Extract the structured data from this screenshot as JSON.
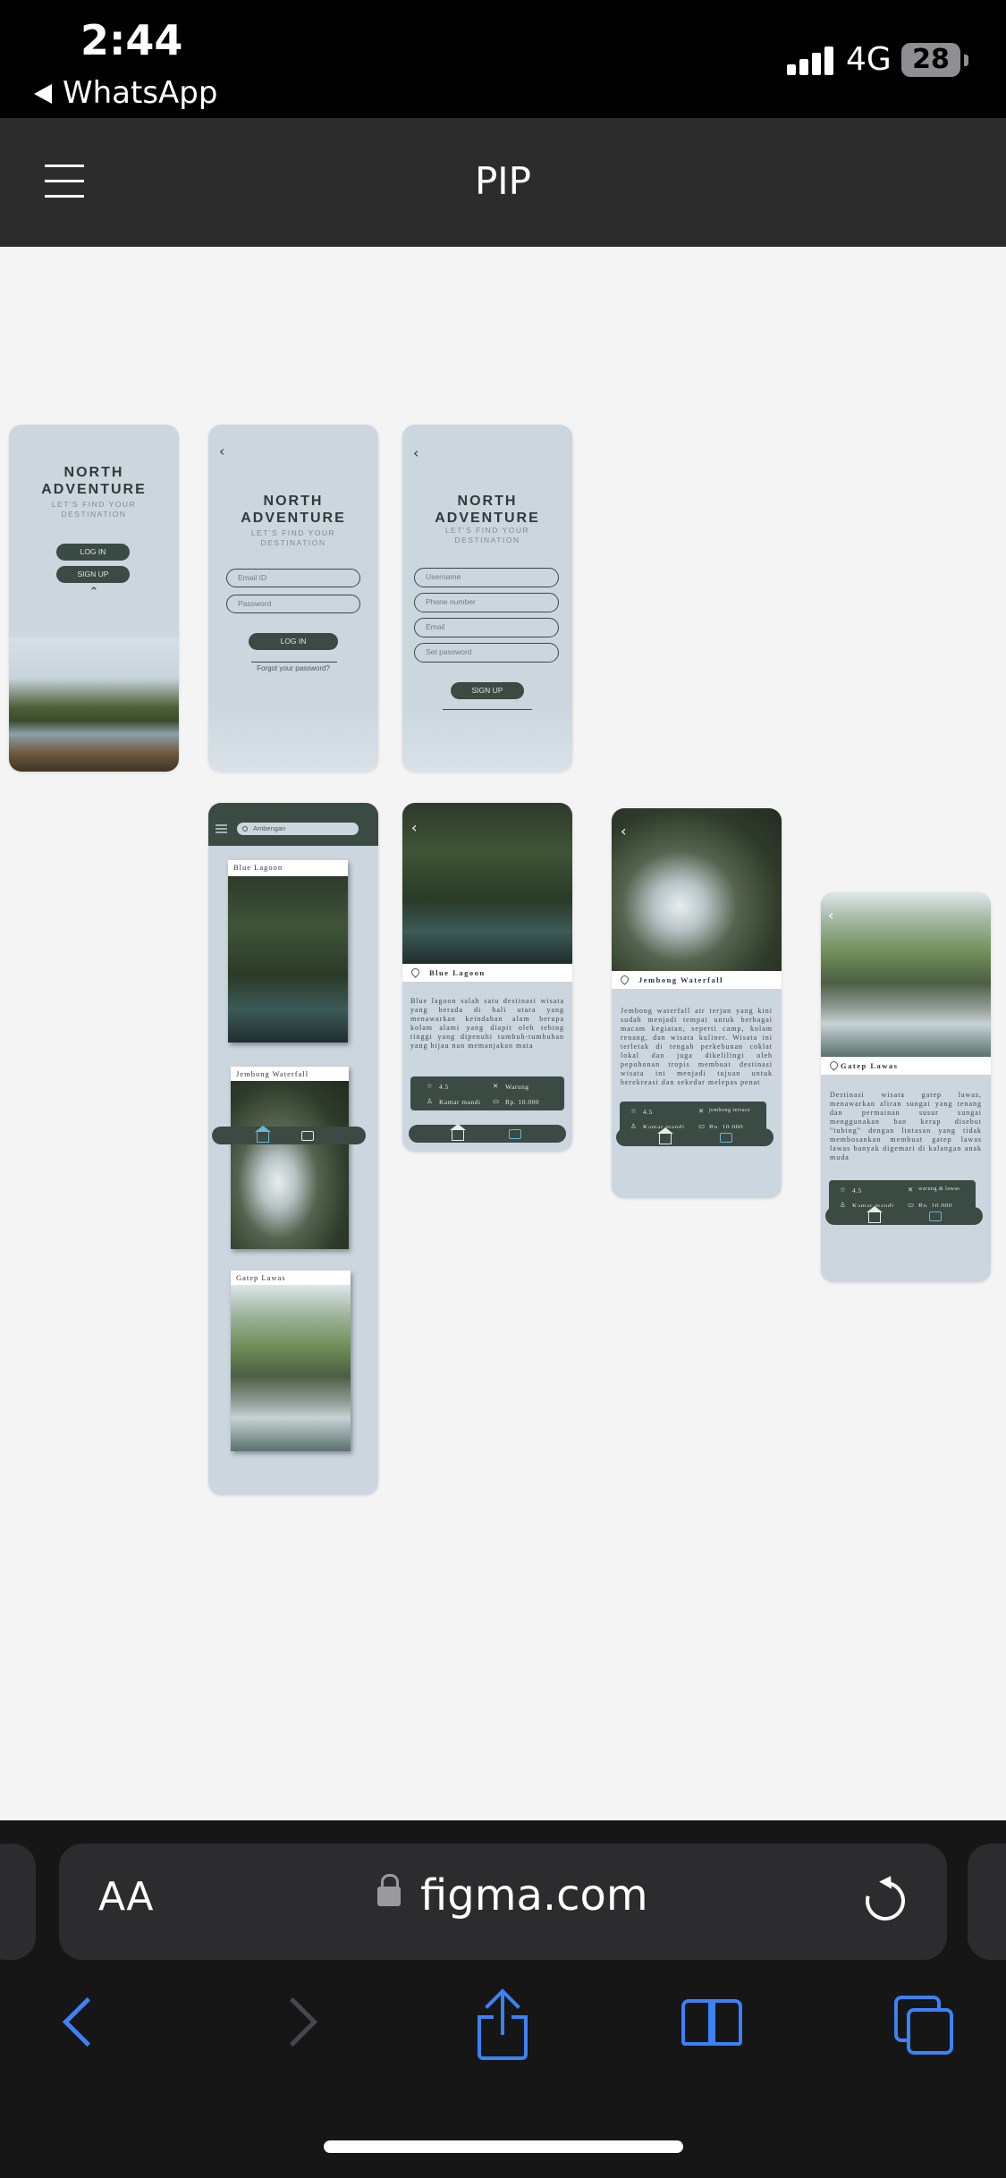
{
  "status_bar": {
    "time": "2:44",
    "back_app": "WhatsApp",
    "network": "4G",
    "battery": "28"
  },
  "header": {
    "title": "PIP"
  },
  "frames": {
    "welcome": {
      "brand": "NORTH\nADVENTURE",
      "tagline": "LET'S FIND YOUR\nDESTINATION",
      "login": "LOG IN",
      "signup": "SIGN UP",
      "chevron": "⌃"
    },
    "login": {
      "back": "‹",
      "brand": "NORTH\nADVENTURE",
      "tagline": "LET'S FIND YOUR\nDESTINATION",
      "email": "Email ID",
      "password": "Password",
      "login": "LOG IN",
      "forgot": "Forgot your password?"
    },
    "signup": {
      "back": "‹",
      "brand": "NORTH\nADVENTURE",
      "tagline": "LET'S FIND YOUR\nDESTINATION",
      "username": "Username",
      "phone": "Phone number",
      "email": "Email",
      "password": "Set password",
      "signup": "SIGN UP"
    },
    "list": {
      "search": "Ambengan",
      "cards": [
        "Blue Lagoon",
        "Jembong Waterfall",
        "Gatep Lawas"
      ]
    },
    "detail_lagoon": {
      "title": "Blue Lagoon",
      "desc": "Blue lagoon salah satu destinasi wisata yang berada di bali utara yang menawarkan keindahan alam berupa kolam alami yang diapit oleh tebing tinggi yang dipenuhi tumbuh-tumbuhan yang hijau nan memanjakan mata",
      "rating": "4.5",
      "food": "Warung",
      "toilet": "Kamar mandi",
      "price": "Rp. 10.000"
    },
    "detail_jembong": {
      "title": "Jembong Waterfall",
      "desc": "Jembong waterfall air terjun yang kini sudah menjadi tempat untuk berbagai macam kegiatan, seperti camp, kolam renang, dan wisata kuliner. Wisata ini terletak di tengah perkebunan coklat lokal dan juga dikelilingi oleh pepohonan tropis membuat destinasi wisata ini menjadi tujuan untuk berekreasi dan sekedar melepas penat",
      "rating": "4.5",
      "food": "jembong terrace",
      "toilet": "Kamar mandi",
      "price": "Rp. 10.000"
    },
    "detail_gatep": {
      "title": "Gatep Lawas",
      "desc": "Destinasi wisata gatep lawas, menawarkan aliran sungai yang tenang dan permainan susur sungai menggunakan ban kerap disebut \"tubing\" dengan lintasan yang tidak membosankan membuat gatep lawas lawas banyak digemari di kalangan anak muda",
      "rating": "4.5",
      "food": "warung & lawas",
      "toilet": "Kamar mandi",
      "price": "Rp. 10.000"
    }
  },
  "browser": {
    "aa": "AA",
    "url": "figma.com"
  },
  "icons": [
    "hamburger-icon",
    "star-icon",
    "food-icon",
    "toilet-icon",
    "price-icon",
    "home-icon",
    "bag-icon",
    "pin-icon",
    "lock-icon",
    "reload-icon",
    "back-arrow-icon",
    "forward-arrow-icon",
    "share-icon",
    "bookmarks-icon",
    "tabs-icon"
  ],
  "colors": {
    "frame_bg": "#cbd6df",
    "dark_green": "#3b4a42",
    "safari_blue": "#3b82f6",
    "header_bg": "#2c2c2c"
  }
}
